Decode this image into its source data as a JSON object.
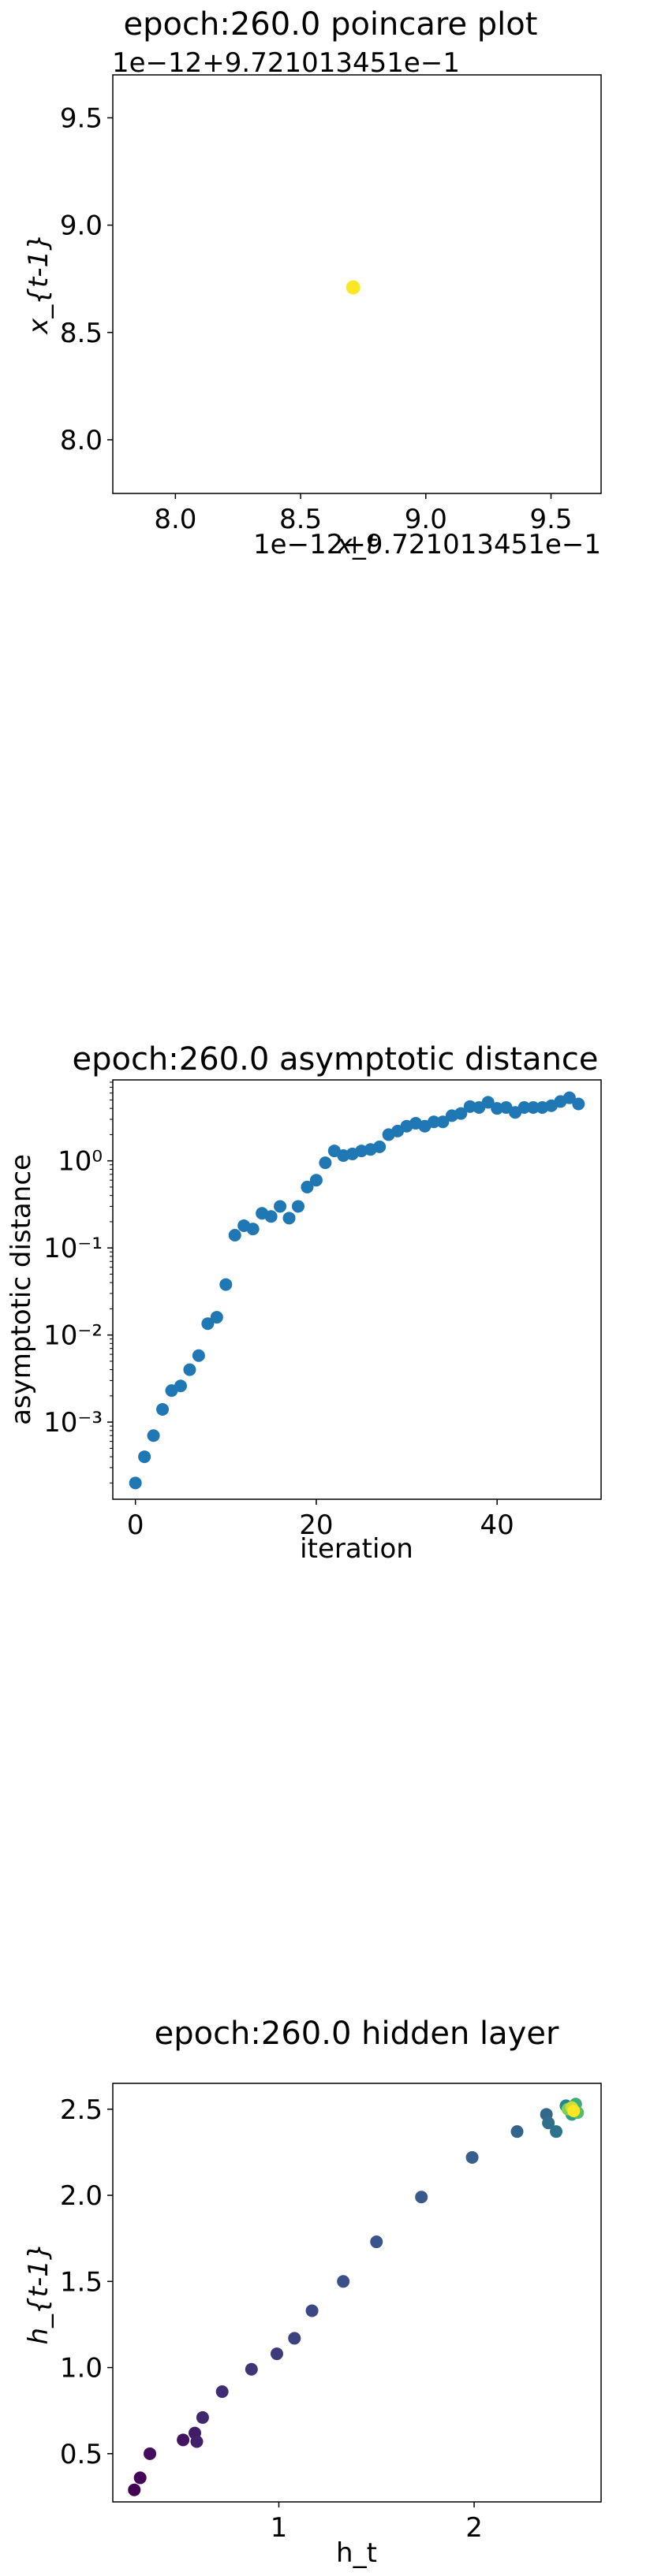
{
  "chart_data": [
    {
      "type": "scatter",
      "title": "epoch:260.0 poincare plot",
      "xlabel": "x_t",
      "ylabel": "x_{t-1}",
      "offset_text_x": "1e−12+9.721013451e−1",
      "offset_text_y": "1e−12+9.721013451e−1",
      "xlim": [
        7.75,
        9.7
      ],
      "ylim": [
        7.75,
        9.7
      ],
      "xticks": [
        8.0,
        8.5,
        9.0,
        9.5
      ],
      "yticks": [
        8.0,
        8.5,
        9.0,
        9.5
      ],
      "xtick_labels": [
        "8.0",
        "8.5",
        "9.0",
        "9.5"
      ],
      "ytick_labels": [
        "8.0",
        "8.5",
        "9.0",
        "9.5"
      ],
      "grid": false,
      "point_color": "#fde725",
      "points": [
        {
          "x": 8.71,
          "y": 8.71
        }
      ]
    },
    {
      "type": "scatter",
      "title": "epoch:260.0 asymptotic distance",
      "xlabel": "iteration",
      "ylabel": "asymptotic distance",
      "yscale": "log",
      "xlim": [
        -2.5,
        51.5
      ],
      "ylim": [
        0.00013,
        8.5
      ],
      "xticks": [
        0,
        20,
        40
      ],
      "xtick_labels": [
        "0",
        "20",
        "40"
      ],
      "yticks": [
        0.001,
        0.01,
        0.1,
        1
      ],
      "ytick_labels": [
        "10⁻³",
        "10⁻²",
        "10⁻¹",
        "10⁰"
      ],
      "grid": false,
      "point_color": "#1f77b4",
      "x": [
        0,
        1,
        2,
        3,
        4,
        5,
        6,
        7,
        8,
        9,
        10,
        11,
        12,
        13,
        14,
        15,
        16,
        17,
        18,
        19,
        20,
        21,
        22,
        23,
        24,
        25,
        26,
        27,
        28,
        29,
        30,
        31,
        32,
        33,
        34,
        35,
        36,
        37,
        38,
        39,
        40,
        41,
        42,
        43,
        44,
        45,
        46,
        47,
        48,
        49
      ],
      "y": [
        0.0002,
        0.0004,
        0.0007,
        0.0014,
        0.0023,
        0.0026,
        0.004,
        0.0058,
        0.0135,
        0.016,
        0.038,
        0.14,
        0.18,
        0.165,
        0.25,
        0.23,
        0.3,
        0.22,
        0.3,
        0.5,
        0.6,
        0.95,
        1.3,
        1.15,
        1.2,
        1.3,
        1.35,
        1.45,
        2.0,
        2.2,
        2.5,
        2.7,
        2.5,
        2.8,
        2.8,
        3.3,
        3.5,
        4.2,
        4.1,
        4.7,
        4.0,
        4.1,
        3.6,
        4.1,
        4.1,
        4.1,
        4.3,
        4.8,
        5.3,
        4.5
      ]
    },
    {
      "type": "scatter",
      "title": "epoch:260.0 hidden layer",
      "xlabel": "h_t",
      "ylabel": "h_{t-1}",
      "xlim": [
        0.15,
        2.65
      ],
      "ylim": [
        0.22,
        2.65
      ],
      "xticks": [
        1,
        2
      ],
      "xtick_labels": [
        "1",
        "2"
      ],
      "yticks": [
        0.5,
        1.0,
        1.5,
        2.0,
        2.5
      ],
      "ytick_labels": [
        "0.5",
        "1.0",
        "1.5",
        "2.0",
        "2.5"
      ],
      "grid": false,
      "colormap": [
        "#440154",
        "#3b528b",
        "#21918c",
        "#5ec962",
        "#fde725"
      ],
      "points": [
        {
          "x": 0.26,
          "y": 0.29,
          "c": 0.0
        },
        {
          "x": 0.29,
          "y": 0.36,
          "c": 0.02
        },
        {
          "x": 0.34,
          "y": 0.5,
          "c": 0.04
        },
        {
          "x": 0.51,
          "y": 0.58,
          "c": 0.06
        },
        {
          "x": 0.57,
          "y": 0.62,
          "c": 0.08
        },
        {
          "x": 0.58,
          "y": 0.57,
          "c": 0.1
        },
        {
          "x": 0.61,
          "y": 0.71,
          "c": 0.12
        },
        {
          "x": 0.71,
          "y": 0.86,
          "c": 0.14
        },
        {
          "x": 0.86,
          "y": 0.99,
          "c": 0.16
        },
        {
          "x": 0.99,
          "y": 1.08,
          "c": 0.18
        },
        {
          "x": 1.08,
          "y": 1.17,
          "c": 0.2
        },
        {
          "x": 1.17,
          "y": 1.33,
          "c": 0.22
        },
        {
          "x": 1.33,
          "y": 1.5,
          "c": 0.24
        },
        {
          "x": 1.5,
          "y": 1.73,
          "c": 0.26
        },
        {
          "x": 1.73,
          "y": 1.99,
          "c": 0.28
        },
        {
          "x": 1.99,
          "y": 2.22,
          "c": 0.3
        },
        {
          "x": 2.22,
          "y": 2.37,
          "c": 0.32
        },
        {
          "x": 2.37,
          "y": 2.47,
          "c": 0.34
        },
        {
          "x": 2.38,
          "y": 2.42,
          "c": 0.36
        },
        {
          "x": 2.42,
          "y": 2.37,
          "c": 0.38
        },
        {
          "x": 2.47,
          "y": 2.52,
          "c": 0.45
        },
        {
          "x": 2.5,
          "y": 2.47,
          "c": 0.55
        },
        {
          "x": 2.52,
          "y": 2.53,
          "c": 0.62
        },
        {
          "x": 2.53,
          "y": 2.48,
          "c": 0.7
        },
        {
          "x": 2.48,
          "y": 2.5,
          "c": 0.8
        },
        {
          "x": 2.5,
          "y": 2.51,
          "c": 0.92
        },
        {
          "x": 2.51,
          "y": 2.49,
          "c": 1.0
        }
      ]
    }
  ]
}
